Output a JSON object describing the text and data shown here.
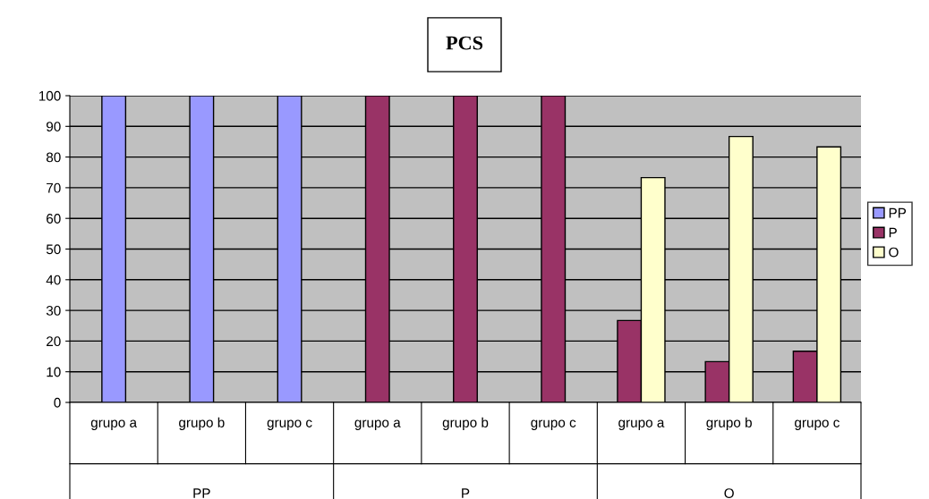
{
  "chart_data": {
    "type": "bar",
    "title": "PCS",
    "categories": [
      "grupo a",
      "grupo b",
      "grupo c",
      "grupo a",
      "grupo b",
      "grupo c",
      "grupo a",
      "grupo b",
      "grupo c"
    ],
    "series": [
      {
        "name": "PP",
        "color": "#9999ff",
        "values": [
          100,
          100,
          100,
          null,
          null,
          null,
          null,
          null,
          null
        ]
      },
      {
        "name": "P",
        "color": "#993366",
        "values": [
          null,
          null,
          null,
          100,
          100,
          100,
          26.7,
          13.3,
          16.7
        ]
      },
      {
        "name": "O",
        "color": "#ffffcc",
        "values": [
          null,
          null,
          null,
          null,
          null,
          null,
          73.3,
          86.7,
          83.3
        ]
      }
    ],
    "annotations": [
      "PP",
      "P",
      "O"
    ],
    "ylim": [
      0,
      100
    ],
    "yticks": [
      0,
      10,
      20,
      30,
      40,
      50,
      60,
      70,
      80,
      90,
      100
    ],
    "grid": "y",
    "legend": "right"
  }
}
